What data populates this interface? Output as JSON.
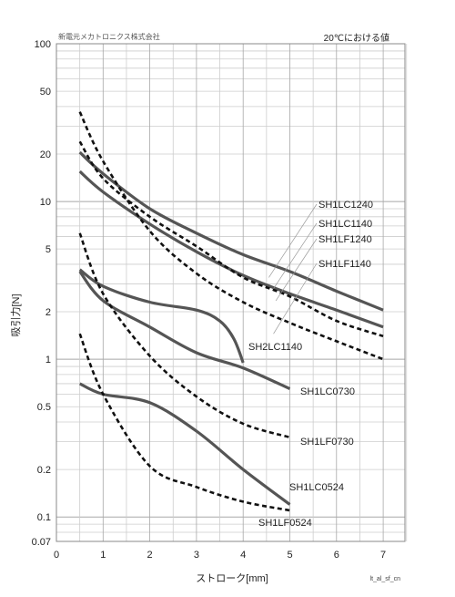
{
  "header": {
    "company": "新電元メカトロニクス株式会社",
    "condition": "20℃における値"
  },
  "footer": {
    "code": "lt_al_sf_cn"
  },
  "chart_data": {
    "type": "line",
    "xlabel": "ストローク[mm]",
    "ylabel": "吸引力[N]",
    "xlim": [
      0,
      8
    ],
    "ylim": [
      0.07,
      100
    ],
    "yscale": "log",
    "grid": true,
    "xticks": [
      0,
      1,
      2,
      3,
      4,
      5,
      6,
      7
    ],
    "yticks": [
      {
        "value": 0.07,
        "label": "0.07"
      },
      {
        "value": 0.1,
        "label": "0.1"
      },
      {
        "value": 0.2,
        "label": "0.2"
      },
      {
        "value": 0.5,
        "label": "0.5"
      },
      {
        "value": 1,
        "label": "1"
      },
      {
        "value": 2,
        "label": "2"
      },
      {
        "value": 5,
        "label": "5"
      },
      {
        "value": 10,
        "label": "10"
      },
      {
        "value": 20,
        "label": "20"
      },
      {
        "value": 50,
        "label": "50"
      },
      {
        "value": 100,
        "label": "100"
      }
    ],
    "series": [
      {
        "name": "SH1LC1240",
        "style": "solid",
        "color": "#555555",
        "points": [
          [
            0.5,
            20.5
          ],
          [
            1,
            15
          ],
          [
            2,
            9
          ],
          [
            3,
            6.3
          ],
          [
            4,
            4.6
          ],
          [
            5,
            3.6
          ],
          [
            6,
            2.7
          ],
          [
            7,
            2.05
          ]
        ]
      },
      {
        "name": "SH1LC1140",
        "style": "solid",
        "color": "#555555",
        "points": [
          [
            0.5,
            15.5
          ],
          [
            1,
            11.5
          ],
          [
            2,
            7.2
          ],
          [
            3,
            4.8
          ],
          [
            4,
            3.4
          ],
          [
            5,
            2.6
          ],
          [
            6,
            2.05
          ],
          [
            7,
            1.6
          ]
        ]
      },
      {
        "name": "SH1LF1240",
        "style": "dashed",
        "color": "#111111",
        "points": [
          [
            0.5,
            24
          ],
          [
            1,
            14
          ],
          [
            2,
            8
          ],
          [
            3,
            5.2
          ],
          [
            4,
            3.3
          ],
          [
            5,
            2.5
          ],
          [
            6,
            1.75
          ],
          [
            7,
            1.4
          ]
        ]
      },
      {
        "name": "SH1LF1140",
        "style": "dashed",
        "color": "#111111",
        "points": [
          [
            0.5,
            37
          ],
          [
            1,
            18
          ],
          [
            2,
            6.5
          ],
          [
            3,
            3.5
          ],
          [
            4,
            2.3
          ],
          [
            5,
            1.7
          ],
          [
            6,
            1.3
          ],
          [
            7,
            1.0
          ]
        ]
      },
      {
        "name": "SH2LC1140",
        "style": "solid",
        "color": "#555555",
        "points": [
          [
            0.5,
            3.7
          ],
          [
            1,
            2.9
          ],
          [
            2,
            2.3
          ],
          [
            3,
            2.05
          ],
          [
            3.5,
            1.75
          ],
          [
            3.8,
            1.35
          ],
          [
            4,
            0.95
          ]
        ]
      },
      {
        "name": "SH1LC0730",
        "style": "solid",
        "color": "#555555",
        "points": [
          [
            0.5,
            3.6
          ],
          [
            1,
            2.35
          ],
          [
            2,
            1.6
          ],
          [
            3,
            1.1
          ],
          [
            4,
            0.88
          ],
          [
            5,
            0.65
          ]
        ]
      },
      {
        "name": "SH1LF0730",
        "style": "dashed",
        "color": "#111111",
        "points": [
          [
            0.5,
            6.3
          ],
          [
            1,
            2.6
          ],
          [
            2,
            1.05
          ],
          [
            3,
            0.58
          ],
          [
            4,
            0.39
          ],
          [
            5,
            0.32
          ]
        ]
      },
      {
        "name": "SH1LC0524",
        "style": "solid",
        "color": "#555555",
        "points": [
          [
            0.5,
            0.7
          ],
          [
            1,
            0.6
          ],
          [
            2,
            0.53
          ],
          [
            3,
            0.35
          ],
          [
            4,
            0.2
          ],
          [
            5,
            0.12
          ]
        ]
      },
      {
        "name": "SH1LF0524",
        "style": "dashed",
        "color": "#111111",
        "points": [
          [
            0.5,
            1.45
          ],
          [
            1,
            0.6
          ],
          [
            2,
            0.21
          ],
          [
            3,
            0.155
          ],
          [
            4,
            0.125
          ],
          [
            5,
            0.11
          ]
        ]
      }
    ]
  }
}
